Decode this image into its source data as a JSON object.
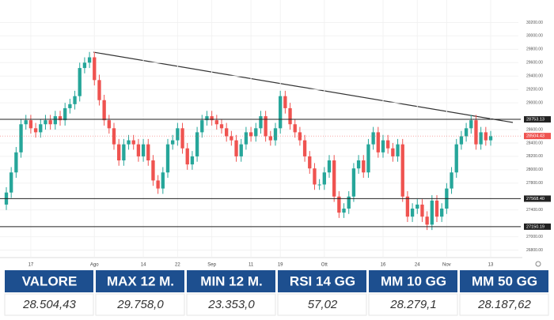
{
  "chart_data": {
    "type": "candlestick",
    "categories": [
      null,
      null,
      null,
      null,
      null,
      "17",
      null,
      null,
      null,
      null,
      null,
      null,
      null,
      null,
      null,
      null,
      null,
      null,
      "Ago",
      null,
      null,
      null,
      null,
      null,
      null,
      null,
      null,
      null,
      "14",
      null,
      null,
      null,
      null,
      null,
      null,
      "22",
      null,
      null,
      null,
      null,
      null,
      null,
      "Sep",
      null,
      null,
      null,
      null,
      null,
      null,
      null,
      "11",
      null,
      null,
      null,
      null,
      null,
      "19",
      null,
      null,
      null,
      null,
      null,
      null,
      null,
      null,
      "Ott",
      null,
      null,
      null,
      null,
      null,
      null,
      null,
      null,
      null,
      null,
      null,
      "16",
      null,
      null,
      null,
      null,
      null,
      null,
      "24",
      null,
      null,
      null,
      null,
      null,
      "Nov",
      null,
      null,
      null,
      null,
      null,
      null,
      null,
      null,
      "13"
    ],
    "open": [
      27480,
      27660,
      27960,
      28260,
      28680,
      28740,
      28620,
      28560,
      28680,
      28740,
      28680,
      28800,
      28740,
      28920,
      28980,
      29100,
      29520,
      29600,
      29680,
      29340,
      29040,
      28740,
      28620,
      28380,
      28140,
      28380,
      28440,
      28380,
      28200,
      28380,
      28140,
      27840,
      27720,
      27960,
      28380,
      28440,
      28620,
      28320,
      28080,
      28200,
      28560,
      28740,
      28800,
      28740,
      28680,
      28620,
      28500,
      28440,
      28200,
      28380,
      28560,
      28500,
      28620,
      28800,
      28500,
      28440,
      28620,
      29100,
      28920,
      28680,
      28560,
      28440,
      28200,
      28020,
      27780,
      27780,
      27960,
      28140,
      27600,
      27360,
      27420,
      27600,
      28020,
      28140,
      27960,
      28380,
      28560,
      28260,
      28440,
      28320,
      28200,
      28380,
      27600,
      27300,
      27420,
      27480,
      27300,
      27180,
      27540,
      27300,
      27420,
      27720,
      27960,
      28380,
      28500,
      28620,
      28740,
      28380,
      28560,
      28440
    ],
    "high": [
      27740,
      28040,
      28340,
      28760,
      28820,
      28820,
      28700,
      28760,
      28820,
      28820,
      28880,
      28880,
      29000,
      29060,
      29180,
      29600,
      29680,
      29760,
      29760,
      29420,
      29120,
      28820,
      28700,
      28460,
      28460,
      28520,
      28520,
      28460,
      28460,
      28460,
      28220,
      27920,
      28040,
      28460,
      28520,
      28700,
      28700,
      28400,
      28280,
      28640,
      28820,
      28880,
      28880,
      28820,
      28760,
      28700,
      28580,
      28520,
      28460,
      28640,
      28640,
      28700,
      28880,
      28880,
      28580,
      28700,
      29180,
      29180,
      29000,
      28760,
      28640,
      28520,
      28280,
      28100,
      27860,
      28040,
      28220,
      28220,
      27680,
      27500,
      27680,
      28100,
      28220,
      28220,
      28460,
      28640,
      28640,
      28520,
      28520,
      28400,
      28460,
      28460,
      27680,
      27500,
      27560,
      27560,
      27380,
      27620,
      27620,
      27500,
      27800,
      28040,
      28460,
      28580,
      28700,
      28820,
      28820,
      28640,
      28640,
      28580
    ],
    "low": [
      27400,
      27580,
      27880,
      28180,
      28600,
      28540,
      28480,
      28480,
      28600,
      28600,
      28600,
      28660,
      28660,
      28840,
      28900,
      29020,
      29440,
      29520,
      29260,
      28960,
      28660,
      28540,
      28300,
      28060,
      28060,
      28300,
      28300,
      28120,
      28120,
      28060,
      27760,
      27640,
      27640,
      27880,
      28300,
      28360,
      28240,
      28000,
      28000,
      28120,
      28480,
      28660,
      28660,
      28600,
      28540,
      28420,
      28360,
      28120,
      28120,
      28300,
      28420,
      28420,
      28540,
      28420,
      28360,
      28360,
      28540,
      28840,
      28600,
      28480,
      28360,
      28120,
      27940,
      27700,
      27700,
      27700,
      27880,
      27520,
      27280,
      27280,
      27340,
      27520,
      27940,
      27880,
      27880,
      28300,
      28180,
      28180,
      28240,
      28120,
      28120,
      27520,
      27220,
      27220,
      27340,
      27220,
      27100,
      27100,
      27220,
      27220,
      27340,
      27640,
      27880,
      28300,
      28420,
      28540,
      28300,
      28300,
      28360,
      28360
    ],
    "close": [
      27660,
      27960,
      28260,
      28680,
      28740,
      28620,
      28560,
      28680,
      28740,
      28680,
      28800,
      28740,
      28920,
      28980,
      29100,
      29520,
      29600,
      29680,
      29340,
      29040,
      28740,
      28620,
      28380,
      28140,
      28380,
      28440,
      28380,
      28200,
      28380,
      28140,
      27840,
      27720,
      27960,
      28380,
      28440,
      28620,
      28320,
      28080,
      28200,
      28560,
      28740,
      28800,
      28740,
      28680,
      28620,
      28500,
      28440,
      28200,
      28380,
      28560,
      28500,
      28620,
      28800,
      28500,
      28440,
      28620,
      29100,
      28920,
      28680,
      28560,
      28440,
      28200,
      28020,
      27780,
      27780,
      27960,
      28140,
      27600,
      27360,
      27420,
      27600,
      28020,
      28140,
      27960,
      28380,
      28560,
      28260,
      28440,
      28320,
      28200,
      28380,
      27600,
      27300,
      27420,
      27480,
      27300,
      27180,
      27540,
      27300,
      27420,
      27720,
      27960,
      28380,
      28500,
      28620,
      28740,
      28380,
      28560,
      28440,
      28500
    ],
    "up_color": "#26a69a",
    "down_color": "#ef5350",
    "ylim": [
      26700,
      30300
    ],
    "yticks": [
      {
        "value": 30200,
        "label": "30200.00"
      },
      {
        "value": 30000,
        "label": "30000.00"
      },
      {
        "value": 29800,
        "label": "29800.00"
      },
      {
        "value": 29600,
        "label": "29600.00"
      },
      {
        "value": 29400,
        "label": "29400.00"
      },
      {
        "value": 29200,
        "label": "29200.00"
      },
      {
        "value": 29000,
        "label": "29000.00"
      },
      {
        "value": 28600,
        "label": "28600.00"
      },
      {
        "value": 28400,
        "label": "28400.00"
      },
      {
        "value": 28200,
        "label": "28200.00"
      },
      {
        "value": 28000,
        "label": "28000.00"
      },
      {
        "value": 27800,
        "label": "27800.00"
      },
      {
        "value": 27400,
        "label": "27400.00"
      },
      {
        "value": 27000,
        "label": "27000.00"
      },
      {
        "value": 26800,
        "label": "26800.00"
      }
    ],
    "levels": [
      28753.13,
      {
        "value": 27568.4,
        "label": "27568.40"
      },
      27150.19
    ],
    "last_price": 28504.43,
    "last_price_color": "#ef5350",
    "grid": true
  },
  "table": {
    "headers": [
      "VALORE",
      "MAX 12 M.",
      "MIN 12 M.",
      "RSI 14 GG",
      "MM 10 GG",
      "MM 50 GG"
    ],
    "values": [
      "28.504,43",
      "29.758,0",
      "23.353,0",
      "57,02",
      "28.279,1",
      "28.187,62"
    ]
  }
}
